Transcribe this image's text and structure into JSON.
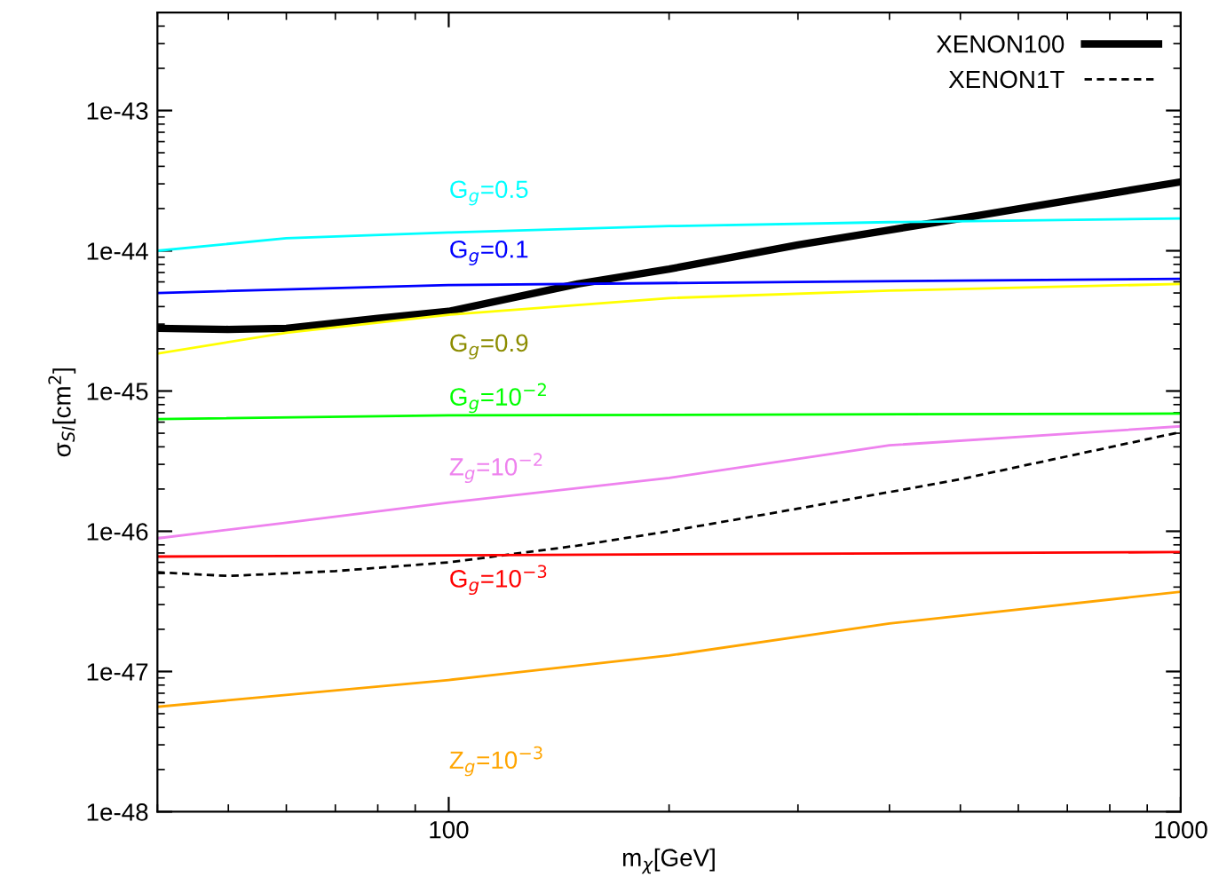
{
  "chart_data": {
    "type": "line",
    "xlabel": "m$_{χ}$[GeV]",
    "ylabel": "σ$_{SI}$[cm$^{2}$]",
    "log": "xy",
    "xlim": [
      40,
      1000
    ],
    "ylim": [
      1e-48,
      5e-43
    ],
    "xticks": [
      100,
      1000
    ],
    "yticks": [
      {
        "value": 1e-43,
        "label": "1e-43"
      },
      {
        "value": 1e-44,
        "label": "1e-44"
      },
      {
        "value": 1e-45,
        "label": "1e-45"
      },
      {
        "value": 1e-46,
        "label": "1e-46"
      },
      {
        "value": 1e-47,
        "label": "1e-47"
      },
      {
        "value": 1e-48,
        "label": "1e-48"
      }
    ],
    "grid": false,
    "legend": "top right",
    "series": [
      {
        "name": "XENON100",
        "color": "#000000",
        "line_style": "solid",
        "x": [
          40,
          50,
          60,
          80,
          100,
          150,
          200,
          300,
          500,
          1000
        ],
        "values": [
          2.8e-45,
          2.75e-45,
          2.8e-45,
          3.3e-45,
          3.7e-45,
          5.8e-45,
          7.4e-45,
          1.1e-44,
          1.7e-44,
          3.1e-44
        ]
      },
      {
        "name": "XENON1T",
        "color": "#000000",
        "line_style": "dashed",
        "x": [
          40,
          50,
          70,
          100,
          150,
          200,
          300,
          500,
          1000
        ],
        "values": [
          5.1e-47,
          4.8e-47,
          5.2e-47,
          6e-47,
          7.9e-47,
          1e-46,
          1.45e-46,
          2.35e-46,
          5.1e-46
        ]
      },
      {
        "name": "G$_{g}$=0.5",
        "color": "#00ffff",
        "line_style": "solid",
        "x": [
          40,
          60,
          100,
          200,
          400,
          1000
        ],
        "values": [
          1e-44,
          1.23e-44,
          1.35e-44,
          1.5e-44,
          1.6e-44,
          1.7e-44
        ]
      },
      {
        "name": "G$_{g}$=0.1",
        "color": "#0000ff",
        "line_style": "solid",
        "x": [
          40,
          100,
          300,
          1000
        ],
        "values": [
          5e-45,
          5.7e-45,
          6e-45,
          6.3e-45
        ]
      },
      {
        "name": "G$_{g}$=0.9",
        "color": "#ffff00",
        "line_style": "solid",
        "x": [
          40,
          60,
          100,
          200,
          400,
          1000
        ],
        "values": [
          1.85e-45,
          2.6e-45,
          3.5e-45,
          4.6e-45,
          5.2e-45,
          5.8e-45
        ]
      },
      {
        "name": "G$_{g}$=10$^{−2}$",
        "color": "#00ff00",
        "line_style": "solid",
        "x": [
          40,
          100,
          1000
        ],
        "values": [
          6.3e-46,
          6.7e-46,
          6.9e-46
        ]
      },
      {
        "name": "Z$_{g}$=10$^{−2}$",
        "color": "#ee82ee",
        "line_style": "solid",
        "x": [
          40,
          60,
          100,
          200,
          400,
          1000
        ],
        "values": [
          8.9e-47,
          1.15e-46,
          1.6e-46,
          2.4e-46,
          4.1e-46,
          5.6e-46
        ]
      },
      {
        "name": "G$_{g}$=10$^{−3}$",
        "color": "#ff0000",
        "line_style": "solid",
        "x": [
          40,
          1000
        ],
        "values": [
          6.6e-47,
          7.1e-47
        ]
      },
      {
        "name": "Z$_{g}$=10$^{−3}$",
        "color": "#ffa500",
        "line_style": "solid",
        "x": [
          40,
          100,
          200,
          400,
          1000
        ],
        "values": [
          5.6e-48,
          8.7e-48,
          1.3e-47,
          2.2e-47,
          3.7e-47
        ]
      }
    ]
  }
}
